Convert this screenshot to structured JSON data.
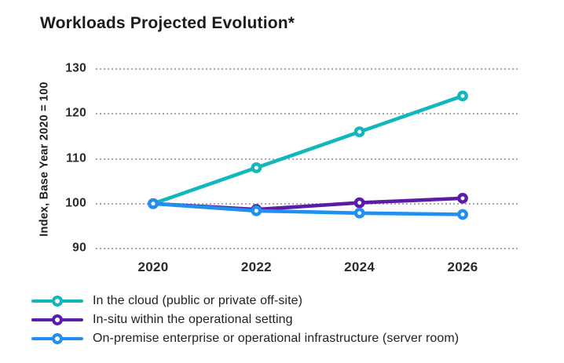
{
  "chart_data": {
    "type": "line",
    "title": "Workloads Projected Evolution*",
    "ylabel": "Index, Base Year 2020 = 100",
    "xlabel": "",
    "categories": [
      "2020",
      "2022",
      "2024",
      "2026"
    ],
    "ylim": [
      90,
      130
    ],
    "yticks": [
      90,
      100,
      110,
      120,
      130
    ],
    "grid": "horizontal-dotted",
    "legend_position": "bottom-left",
    "marker": "open-circle",
    "series": [
      {
        "name": "In the cloud (public or private off-site)",
        "color": "#11b7bd",
        "values": [
          100,
          108,
          116,
          124
        ]
      },
      {
        "name": "In-situ within the operational setting",
        "color": "#5b1ca8",
        "values": [
          100,
          98.7,
          100.2,
          101.2
        ]
      },
      {
        "name": "On-premise enterprise or operational infrastructure (server room)",
        "color": "#2090f0",
        "values": [
          100,
          98.4,
          97.9,
          97.6
        ]
      }
    ]
  },
  "colors": {
    "title_text": "#1c1c1e",
    "tick_text": "#2a2a2d",
    "legend_text": "#222222",
    "gridline": "#a9a9ad",
    "background": "#ffffff"
  }
}
